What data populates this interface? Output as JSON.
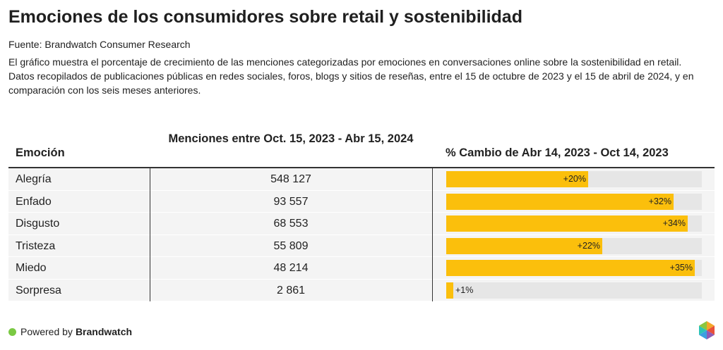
{
  "header": {
    "title": "Emociones de los consumidores sobre retail y sostenibilidad",
    "source": "Fuente: Brandwatch Consumer Research",
    "description": "El gráfico muestra el porcentaje de crecimiento de las menciones categorizadas por emociones en conversaciones online sobre la sostenibilidad en retail. Datos recopilados de publicaciones públicas en redes sociales, foros, blogs y sitios de reseñas, entre el 15 de octubre de 2023 y el 15 de abril de 2024, y en comparación con los seis meses anteriores."
  },
  "chart_data": {
    "type": "table",
    "columns": [
      "Emoción",
      "Menciones entre Oct. 15, 2023 - Abr 15, 2024",
      "% Cambio de Abr 14, 2023 - Oct 14, 2023"
    ],
    "bar_max": 36,
    "rows": [
      {
        "emotion": "Alegría",
        "mentions": "548 127",
        "change": 20,
        "change_label": "+20%"
      },
      {
        "emotion": "Enfado",
        "mentions": "93 557",
        "change": 32,
        "change_label": "+32%"
      },
      {
        "emotion": "Disgusto",
        "mentions": "68 553",
        "change": 34,
        "change_label": "+34%"
      },
      {
        "emotion": "Tristeza",
        "mentions": "55 809",
        "change": 22,
        "change_label": "+22%"
      },
      {
        "emotion": "Miedo",
        "mentions": "48 214",
        "change": 35,
        "change_label": "+35%"
      },
      {
        "emotion": "Sorpresa",
        "mentions": "2 861",
        "change": 1,
        "change_label": "+1%"
      }
    ]
  },
  "colors": {
    "bar": "#fbbf0c",
    "track": "#e6e6e6",
    "row": "#f4f4f4",
    "brand_dot": "#7ac943"
  },
  "footer": {
    "powered_by": "Powered by",
    "brand": "Brandwatch"
  }
}
